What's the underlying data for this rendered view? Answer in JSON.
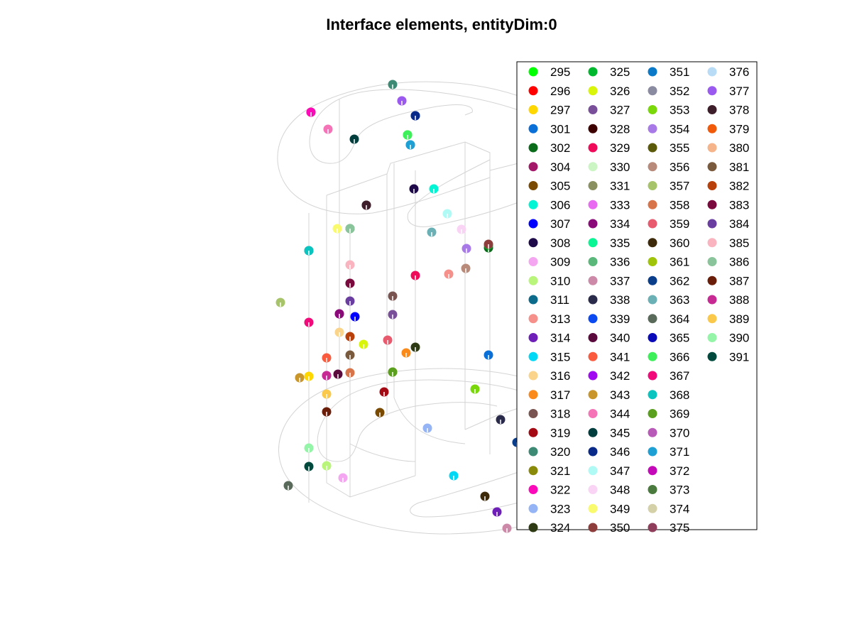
{
  "chart_data": {
    "type": "scatter",
    "title": "Interface elements, entityDim:0",
    "xlabel": "",
    "ylabel": "",
    "grid": false,
    "legend_placement": "top-right",
    "series": [
      {
        "name": "295",
        "color": "#00ff00"
      },
      {
        "name": "296",
        "color": "#ff0000"
      },
      {
        "name": "297",
        "color": "#ffd700"
      },
      {
        "name": "301",
        "color": "#0b6fd8"
      },
      {
        "name": "302",
        "color": "#0a6b1a"
      },
      {
        "name": "304",
        "color": "#a31869"
      },
      {
        "name": "305",
        "color": "#7a4a00"
      },
      {
        "name": "306",
        "color": "#00f5d4"
      },
      {
        "name": "307",
        "color": "#0000ff"
      },
      {
        "name": "308",
        "color": "#1e0a48"
      },
      {
        "name": "309",
        "color": "#f5a6f0"
      },
      {
        "name": "310",
        "color": "#b8f57a"
      },
      {
        "name": "311",
        "color": "#0c6a8a"
      },
      {
        "name": "313",
        "color": "#f5918a"
      },
      {
        "name": "314",
        "color": "#6d1fb8"
      },
      {
        "name": "315",
        "color": "#00d8f5"
      },
      {
        "name": "316",
        "color": "#fad48a"
      },
      {
        "name": "317",
        "color": "#fa8a1a"
      },
      {
        "name": "318",
        "color": "#7a5450"
      },
      {
        "name": "319",
        "color": "#a30a14"
      },
      {
        "name": "320",
        "color": "#3d8a74"
      },
      {
        "name": "321",
        "color": "#8a8a0a"
      },
      {
        "name": "322",
        "color": "#fa0ab8"
      },
      {
        "name": "323",
        "color": "#94b4f5"
      },
      {
        "name": "324",
        "color": "#2e3a14"
      },
      {
        "name": "325",
        "color": "#00b82e"
      },
      {
        "name": "326",
        "color": "#d8f50a"
      },
      {
        "name": "327",
        "color": "#7a4f9a"
      },
      {
        "name": "328",
        "color": "#3d0000"
      },
      {
        "name": "329",
        "color": "#f00a5a"
      },
      {
        "name": "330",
        "color": "#ccf5c4"
      },
      {
        "name": "331",
        "color": "#8a9060"
      },
      {
        "name": "333",
        "color": "#e86af0"
      },
      {
        "name": "334",
        "color": "#8a0a7a"
      },
      {
        "name": "335",
        "color": "#0af594"
      },
      {
        "name": "336",
        "color": "#5ab87a"
      },
      {
        "name": "337",
        "color": "#cc8aa8"
      },
      {
        "name": "338",
        "color": "#2a2a4a"
      },
      {
        "name": "339",
        "color": "#0a4af0"
      },
      {
        "name": "340",
        "color": "#5a0a3d"
      },
      {
        "name": "341",
        "color": "#fa5a3d"
      },
      {
        "name": "342",
        "color": "#a00af0"
      },
      {
        "name": "343",
        "color": "#c8962a"
      },
      {
        "name": "344",
        "color": "#f574b8"
      },
      {
        "name": "345",
        "color": "#003d3d"
      },
      {
        "name": "346",
        "color": "#0a2a8a"
      },
      {
        "name": "347",
        "color": "#b0faf5"
      },
      {
        "name": "348",
        "color": "#fad4f5"
      },
      {
        "name": "349",
        "color": "#fafa6e"
      },
      {
        "name": "350",
        "color": "#8e3d3d"
      },
      {
        "name": "351",
        "color": "#0a7ac8"
      },
      {
        "name": "352",
        "color": "#8a8aa0"
      },
      {
        "name": "353",
        "color": "#7ad80a"
      },
      {
        "name": "354",
        "color": "#a87ae8"
      },
      {
        "name": "355",
        "color": "#5a5a0a"
      },
      {
        "name": "356",
        "color": "#b88a7a"
      },
      {
        "name": "357",
        "color": "#a8c46a"
      },
      {
        "name": "358",
        "color": "#d8744a"
      },
      {
        "name": "359",
        "color": "#e85a6e"
      },
      {
        "name": "360",
        "color": "#3d2a0a"
      },
      {
        "name": "361",
        "color": "#a0c40a"
      },
      {
        "name": "362",
        "color": "#0a3d8a"
      },
      {
        "name": "363",
        "color": "#6ab0b4"
      },
      {
        "name": "364",
        "color": "#5a6a5a"
      },
      {
        "name": "365",
        "color": "#0a0ab8"
      },
      {
        "name": "366",
        "color": "#3df05a"
      },
      {
        "name": "367",
        "color": "#f00a7a"
      },
      {
        "name": "368",
        "color": "#0ac4c0"
      },
      {
        "name": "369",
        "color": "#5aa01e"
      },
      {
        "name": "370",
        "color": "#b85ab8"
      },
      {
        "name": "371",
        "color": "#1ea0d4"
      },
      {
        "name": "372",
        "color": "#c40ab8"
      },
      {
        "name": "373",
        "color": "#4a7a3d"
      },
      {
        "name": "374",
        "color": "#d4d0a8"
      },
      {
        "name": "375",
        "color": "#8e3d5a"
      },
      {
        "name": "376",
        "color": "#b8dcf5"
      },
      {
        "name": "377",
        "color": "#9a5af0"
      },
      {
        "name": "378",
        "color": "#3d1e2a"
      },
      {
        "name": "379",
        "color": "#f05a0a"
      },
      {
        "name": "380",
        "color": "#f5b48a"
      },
      {
        "name": "381",
        "color": "#7a5a3d"
      },
      {
        "name": "382",
        "color": "#b8400a"
      },
      {
        "name": "383",
        "color": "#7a0a3d"
      },
      {
        "name": "384",
        "color": "#6a3da0"
      },
      {
        "name": "385",
        "color": "#fab4c0"
      },
      {
        "name": "386",
        "color": "#8ac49a"
      },
      {
        "name": "387",
        "color": "#6a1e0a"
      },
      {
        "name": "388",
        "color": "#c82a94"
      },
      {
        "name": "389",
        "color": "#fac84a"
      },
      {
        "name": "390",
        "color": "#94f5a8"
      },
      {
        "name": "391",
        "color": "#004a3d"
      }
    ]
  }
}
